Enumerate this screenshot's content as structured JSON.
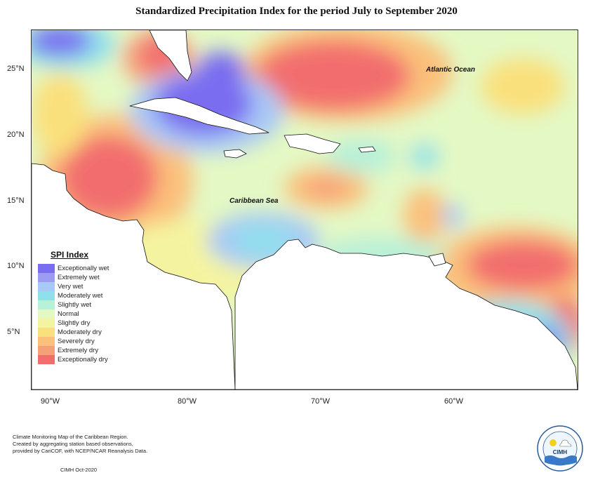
{
  "title": "Standardized Precipitation Index for the period July to September 2020",
  "annotations": {
    "atlantic": "Atlantic Ocean",
    "caribbean": "Caribbean Sea"
  },
  "axes": {
    "lat_labels": [
      "25°N",
      "20°N",
      "15°N",
      "10°N",
      "5°N"
    ],
    "lon_labels": [
      "90°W",
      "80°W",
      "70°W",
      "60°W"
    ]
  },
  "legend": {
    "title": "SPI Index",
    "items": [
      {
        "label": "Exceptionally wet",
        "color": "#7a6df0"
      },
      {
        "label": "Extremely wet",
        "color": "#9c9cf2"
      },
      {
        "label": "Very wet",
        "color": "#a8c8f6"
      },
      {
        "label": "Moderately wet",
        "color": "#8fe0ec"
      },
      {
        "label": "Slightly wet",
        "color": "#b8f0d8"
      },
      {
        "label": "Normal",
        "color": "#e4f8c4"
      },
      {
        "label": "Slightly dry",
        "color": "#f4f4a0"
      },
      {
        "label": "Moderately dry",
        "color": "#fae07c"
      },
      {
        "label": "Severely dry",
        "color": "#fbc07a"
      },
      {
        "label": "Extremely dry",
        "color": "#f6a07a"
      },
      {
        "label": "Exceptionally dry",
        "color": "#f26e6e"
      }
    ]
  },
  "footer": {
    "line1": "Climate Monitoring Map of the Caribbean Region.",
    "line2": "Created by aggregating station based observations,",
    "line3": "provided by CariCOF, with NCEP/NCAR Reanalysis Data.",
    "credit": "CIMH Oct-2020"
  },
  "logo": {
    "text": "CIMH"
  }
}
